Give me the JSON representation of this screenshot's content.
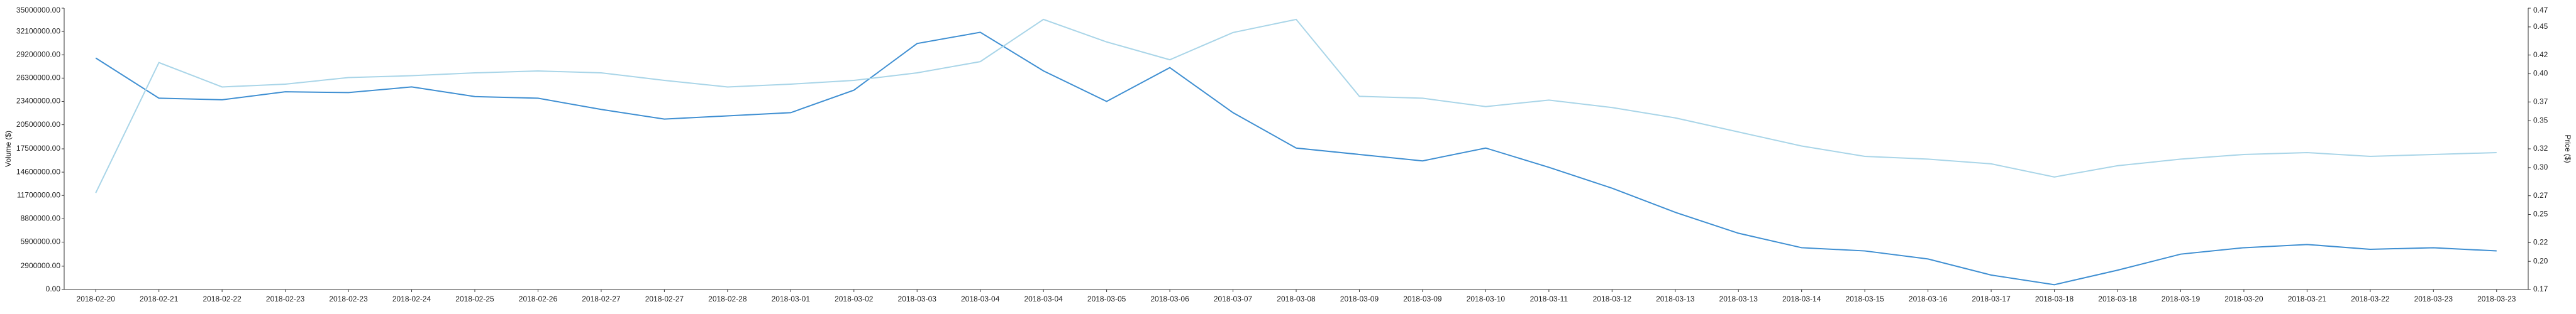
{
  "chart_data": {
    "type": "line",
    "y_label": "Volume ($)",
    "y2_label": "Price ($)",
    "categories": [
      "2018-02-20",
      "2018-02-21",
      "2018-02-22",
      "2018-02-23",
      "2018-02-23",
      "2018-02-24",
      "2018-02-25",
      "2018-02-26",
      "2018-02-27",
      "2018-02-27",
      "2018-02-28",
      "2018-03-01",
      "2018-03-02",
      "2018-03-03",
      "2018-03-04",
      "2018-03-04",
      "2018-03-05",
      "2018-03-06",
      "2018-03-07",
      "2018-03-08",
      "2018-03-09",
      "2018-03-09",
      "2018-03-10",
      "2018-03-11",
      "2018-03-12",
      "2018-03-13",
      "2018-03-13",
      "2018-03-14",
      "2018-03-15",
      "2018-03-16",
      "2018-03-17",
      "2018-03-18",
      "2018-03-18",
      "2018-03-19",
      "2018-03-20",
      "2018-03-21",
      "2018-03-22",
      "2018-03-23",
      "2018-03-23"
    ],
    "series": [
      {
        "color": "#3f8fd2",
        "axis": "y",
        "values": [
          28800000,
          23800000,
          23600000,
          24600000,
          24500000,
          25200000,
          24000000,
          23800000,
          22400000,
          21200000,
          21600000,
          22000000,
          24800000,
          30600000,
          32000000,
          27200000,
          23400000,
          27600000,
          22000000,
          17600000,
          16800000,
          16000000,
          17600000,
          15200000,
          12600000,
          9600000,
          7000000,
          5200000,
          4800000,
          3800000,
          1800000,
          600000,
          2400000,
          4400000,
          5200000,
          5600000,
          5000000,
          5200000,
          4800000
        ]
      },
      {
        "color": "#a9d5e8",
        "axis": "y2",
        "values": [
          0.273,
          0.412,
          0.386,
          0.389,
          0.396,
          0.398,
          0.401,
          0.403,
          0.401,
          0.393,
          0.386,
          0.389,
          0.393,
          0.401,
          0.413,
          0.458,
          0.434,
          0.415,
          0.444,
          0.458,
          0.376,
          0.374,
          0.365,
          0.372,
          0.364,
          0.353,
          0.338,
          0.323,
          0.312,
          0.309,
          0.304,
          0.29,
          0.302,
          0.309,
          0.314,
          0.316,
          0.312,
          0.314,
          0.316
        ]
      }
    ],
    "ylim": [
      0,
      35000000
    ],
    "yticks": [
      {
        "value": 0,
        "label": "0.00"
      },
      {
        "value": 2900000,
        "label": "2900000.00"
      },
      {
        "value": 5900000,
        "label": "5900000.00"
      },
      {
        "value": 8800000,
        "label": "8800000.00"
      },
      {
        "value": 11700000,
        "label": "11700000.00"
      },
      {
        "value": 14600000,
        "label": "14600000.00"
      },
      {
        "value": 17500000,
        "label": "17500000.00"
      },
      {
        "value": 20500000,
        "label": "20500000.00"
      },
      {
        "value": 23400000,
        "label": "23400000.00"
      },
      {
        "value": 26300000,
        "label": "26300000.00"
      },
      {
        "value": 29200000,
        "label": "29200000.00"
      },
      {
        "value": 32100000,
        "label": "32100000.00"
      },
      {
        "value": 35000000,
        "label": "35000000.00"
      }
    ],
    "y2lim": [
      0.17,
      0.47
    ],
    "y2ticks": [
      0.17,
      {
        "value": 0.2,
        "label": "0.20"
      },
      0.22,
      0.25,
      0.27,
      {
        "value": 0.3,
        "label": "0.30"
      },
      0.32,
      0.35,
      0.37,
      {
        "value": 0.4,
        "label": "0.40"
      },
      0.42,
      0.45,
      0.47
    ]
  }
}
